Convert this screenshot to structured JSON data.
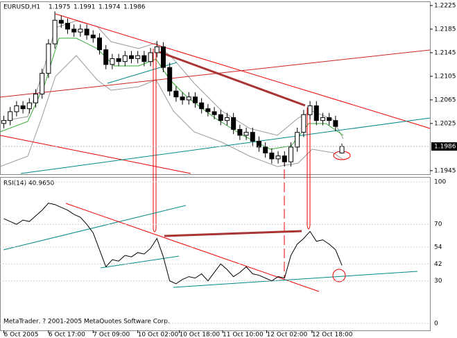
{
  "chart_data": [
    {
      "type": "candlestick",
      "title": "EURUSD,H1",
      "xlim": [
        -0.6,
        66.8
      ],
      "ylim": [
        1.1939,
        1.2232
      ],
      "yticks": [
        1.2225,
        1.2185,
        1.2145,
        1.2105,
        1.2065,
        1.2025,
        1.1945
      ],
      "open": [
        1.2025,
        1.203,
        1.2045,
        1.2055,
        1.205,
        1.206,
        1.2075,
        1.211,
        1.216,
        1.22,
        1.2195,
        1.2185,
        1.218,
        1.2185,
        1.2175,
        1.217,
        1.215,
        1.2125,
        1.2135,
        1.213,
        1.214,
        1.2135,
        1.214,
        1.213,
        1.2145,
        1.2155,
        1.212,
        1.208,
        1.207,
        1.2065,
        1.207,
        1.206,
        1.205,
        1.2045,
        1.204,
        1.203,
        1.2035,
        1.2015,
        1.2005,
        1.201,
        1.1995,
        1.1985,
        1.1975,
        1.1965,
        1.197,
        1.196,
        1.1985,
        1.201,
        1.204,
        1.2055,
        1.203,
        1.2035,
        1.203,
        1.1975
      ],
      "high": [
        1.2038,
        1.2053,
        1.2063,
        1.2063,
        1.2068,
        1.2083,
        1.2118,
        1.2168,
        1.2215,
        1.2208,
        1.2203,
        1.2193,
        1.2193,
        1.2193,
        1.2183,
        1.2178,
        1.2158,
        1.2143,
        1.2143,
        1.2148,
        1.2148,
        1.2148,
        1.2148,
        1.2153,
        1.2165,
        1.2163,
        1.2128,
        1.2088,
        1.2078,
        1.2078,
        1.2078,
        1.2068,
        1.2058,
        1.2053,
        1.2048,
        1.2043,
        1.2043,
        1.2023,
        1.2018,
        1.2018,
        1.2003,
        1.1993,
        1.1983,
        1.1978,
        1.1978,
        1.1993,
        1.2018,
        1.2048,
        1.2063,
        1.2063,
        1.2043,
        1.2043,
        1.2038,
        1.1991
      ],
      "low": [
        1.2017,
        1.2022,
        1.2037,
        1.2042,
        1.2042,
        1.2052,
        1.2067,
        1.2102,
        1.2152,
        1.2187,
        1.2177,
        1.2172,
        1.2172,
        1.2167,
        1.2162,
        1.2142,
        1.2117,
        1.2117,
        1.2122,
        1.2122,
        1.2127,
        1.2127,
        1.2122,
        1.2122,
        1.2137,
        1.2112,
        1.2072,
        1.2062,
        1.2057,
        1.2057,
        1.2052,
        1.2042,
        1.2037,
        1.2032,
        1.2022,
        1.2022,
        1.2007,
        1.1997,
        1.1997,
        1.1987,
        1.1977,
        1.1967,
        1.1957,
        1.1957,
        1.1952,
        1.1952,
        1.1977,
        1.2002,
        1.2032,
        1.2022,
        1.2022,
        1.2022,
        1.2012,
        1.1974
      ],
      "close": [
        1.203,
        1.2045,
        1.2055,
        1.205,
        1.206,
        1.2075,
        1.211,
        1.216,
        1.22,
        1.2195,
        1.2185,
        1.218,
        1.2185,
        1.2175,
        1.217,
        1.215,
        1.2125,
        1.2135,
        1.213,
        1.214,
        1.2135,
        1.214,
        1.213,
        1.2145,
        1.2155,
        1.212,
        1.208,
        1.207,
        1.2065,
        1.207,
        1.206,
        1.205,
        1.2045,
        1.204,
        1.203,
        1.2035,
        1.2015,
        1.2005,
        1.201,
        1.1995,
        1.1985,
        1.1975,
        1.1965,
        1.197,
        1.196,
        1.1985,
        1.201,
        1.204,
        1.2055,
        1.203,
        1.2035,
        1.203,
        1.202,
        1.1986
      ]
    },
    {
      "type": "line",
      "title": "RSI(14) 40.9650",
      "color": "#000000",
      "xlim": [
        -0.6,
        66.8
      ],
      "ylim": [
        -5,
        103
      ],
      "yticks": [
        100,
        70,
        54,
        42,
        30,
        0
      ],
      "grid": true,
      "xticks": [
        {
          "value": 0,
          "label": "6 Oct 2005"
        },
        {
          "value": 7,
          "label": "6 Oct 17:00"
        },
        {
          "value": 14,
          "label": "7 Oct 09:00"
        },
        {
          "value": 21,
          "label": "10 Oct 02:00"
        },
        {
          "value": 27.5,
          "label": "10 Oct 18:00"
        },
        {
          "value": 34.3,
          "label": "11 Oct 10:00"
        },
        {
          "value": 41.2,
          "label": "12 Oct 02:00"
        },
        {
          "value": 48.3,
          "label": "12 Oct 18:00"
        }
      ],
      "values": [
        74,
        72,
        70,
        73,
        72,
        76,
        80,
        85,
        84,
        82,
        80,
        77,
        75,
        70,
        64,
        52,
        40,
        45,
        44,
        48,
        47,
        50,
        49,
        53,
        60,
        47,
        30,
        28,
        31,
        33,
        32,
        35,
        30,
        36,
        42,
        38,
        33,
        36,
        40,
        35,
        34,
        32,
        30,
        33,
        32,
        48,
        56,
        60,
        65,
        58,
        59,
        56,
        52,
        40.97
      ]
    }
  ],
  "footer": "MetaTrader, ? 2001-2005 MetaQuotes Software Corp."
}
